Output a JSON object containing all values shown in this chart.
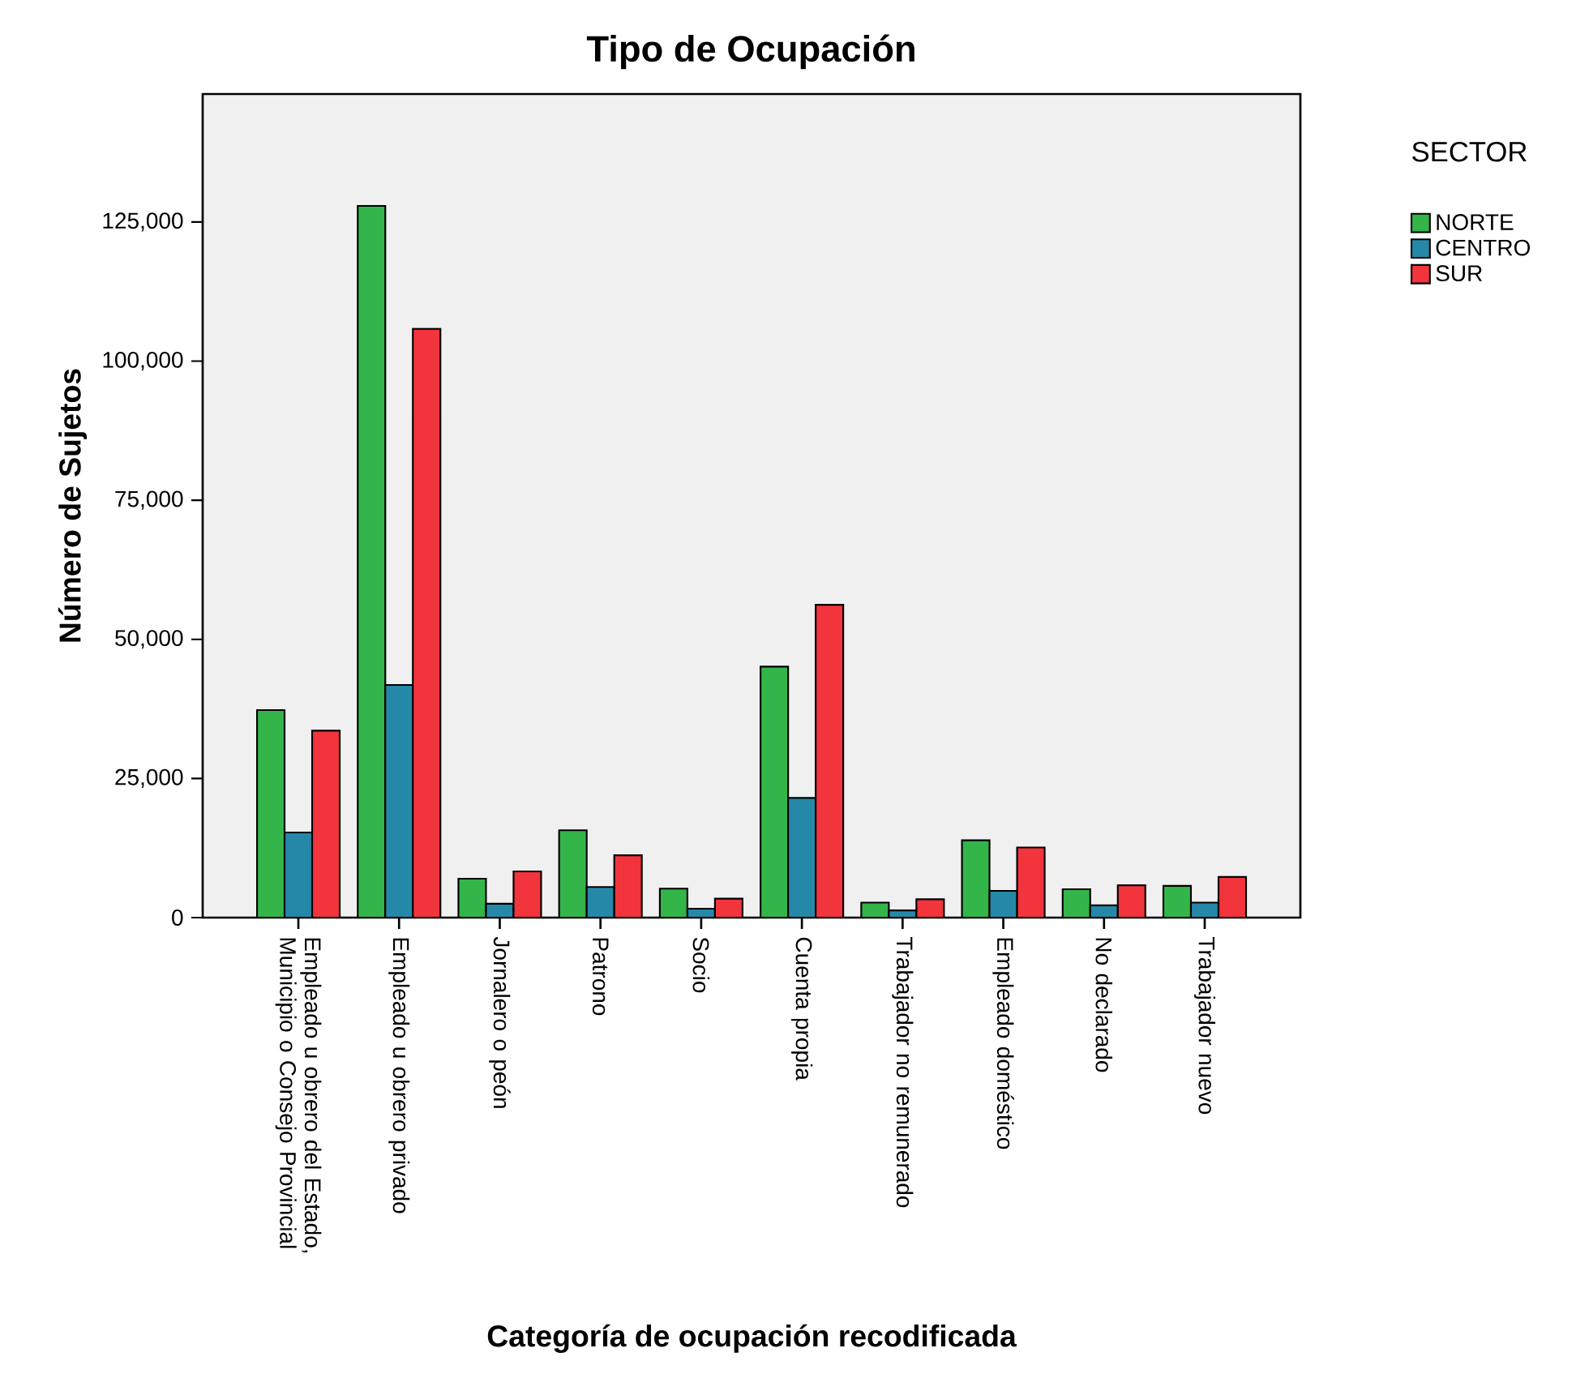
{
  "chart_data": {
    "type": "bar",
    "title": "Tipo de Ocupación",
    "xlabel": "Categoría de ocupación recodificada",
    "ylabel": "Número de Sujetos",
    "legend_title": "SECTOR",
    "legend": "top right",
    "categories": [
      "Empleado u obrero del Estado, Municipio o Consejo Provincial",
      "Empleado u obrero privado",
      "Jornalero o peón",
      "Patrono",
      "Socio",
      "Cuenta propia",
      "Trabajador no remunerado",
      "Empleado doméstico",
      "No declarado",
      "Trabajador nuevo"
    ],
    "series": [
      {
        "name": "NORTE",
        "color": "#33b54a",
        "values": [
          37300,
          127900,
          7000,
          15700,
          5200,
          45100,
          2700,
          13900,
          5100,
          5700
        ]
      },
      {
        "name": "CENTRO",
        "color": "#2688a8",
        "values": [
          15300,
          41800,
          2500,
          5500,
          1600,
          21500,
          1300,
          4800,
          2200,
          2700
        ]
      },
      {
        "name": "SUR",
        "color": "#f2343c",
        "values": [
          33600,
          105800,
          8300,
          11200,
          3400,
          56200,
          3300,
          12600,
          5800,
          7300
        ]
      }
    ],
    "ylim": [
      0,
      148000
    ],
    "yticks": [
      0,
      {
        "value": 25000,
        "label": "25,000"
      },
      {
        "value": 50000,
        "label": "50,000"
      },
      {
        "value": 75000,
        "label": "75,000"
      },
      {
        "value": 100000,
        "label": "100,000"
      },
      {
        "value": 125000,
        "label": "125,000"
      }
    ]
  }
}
